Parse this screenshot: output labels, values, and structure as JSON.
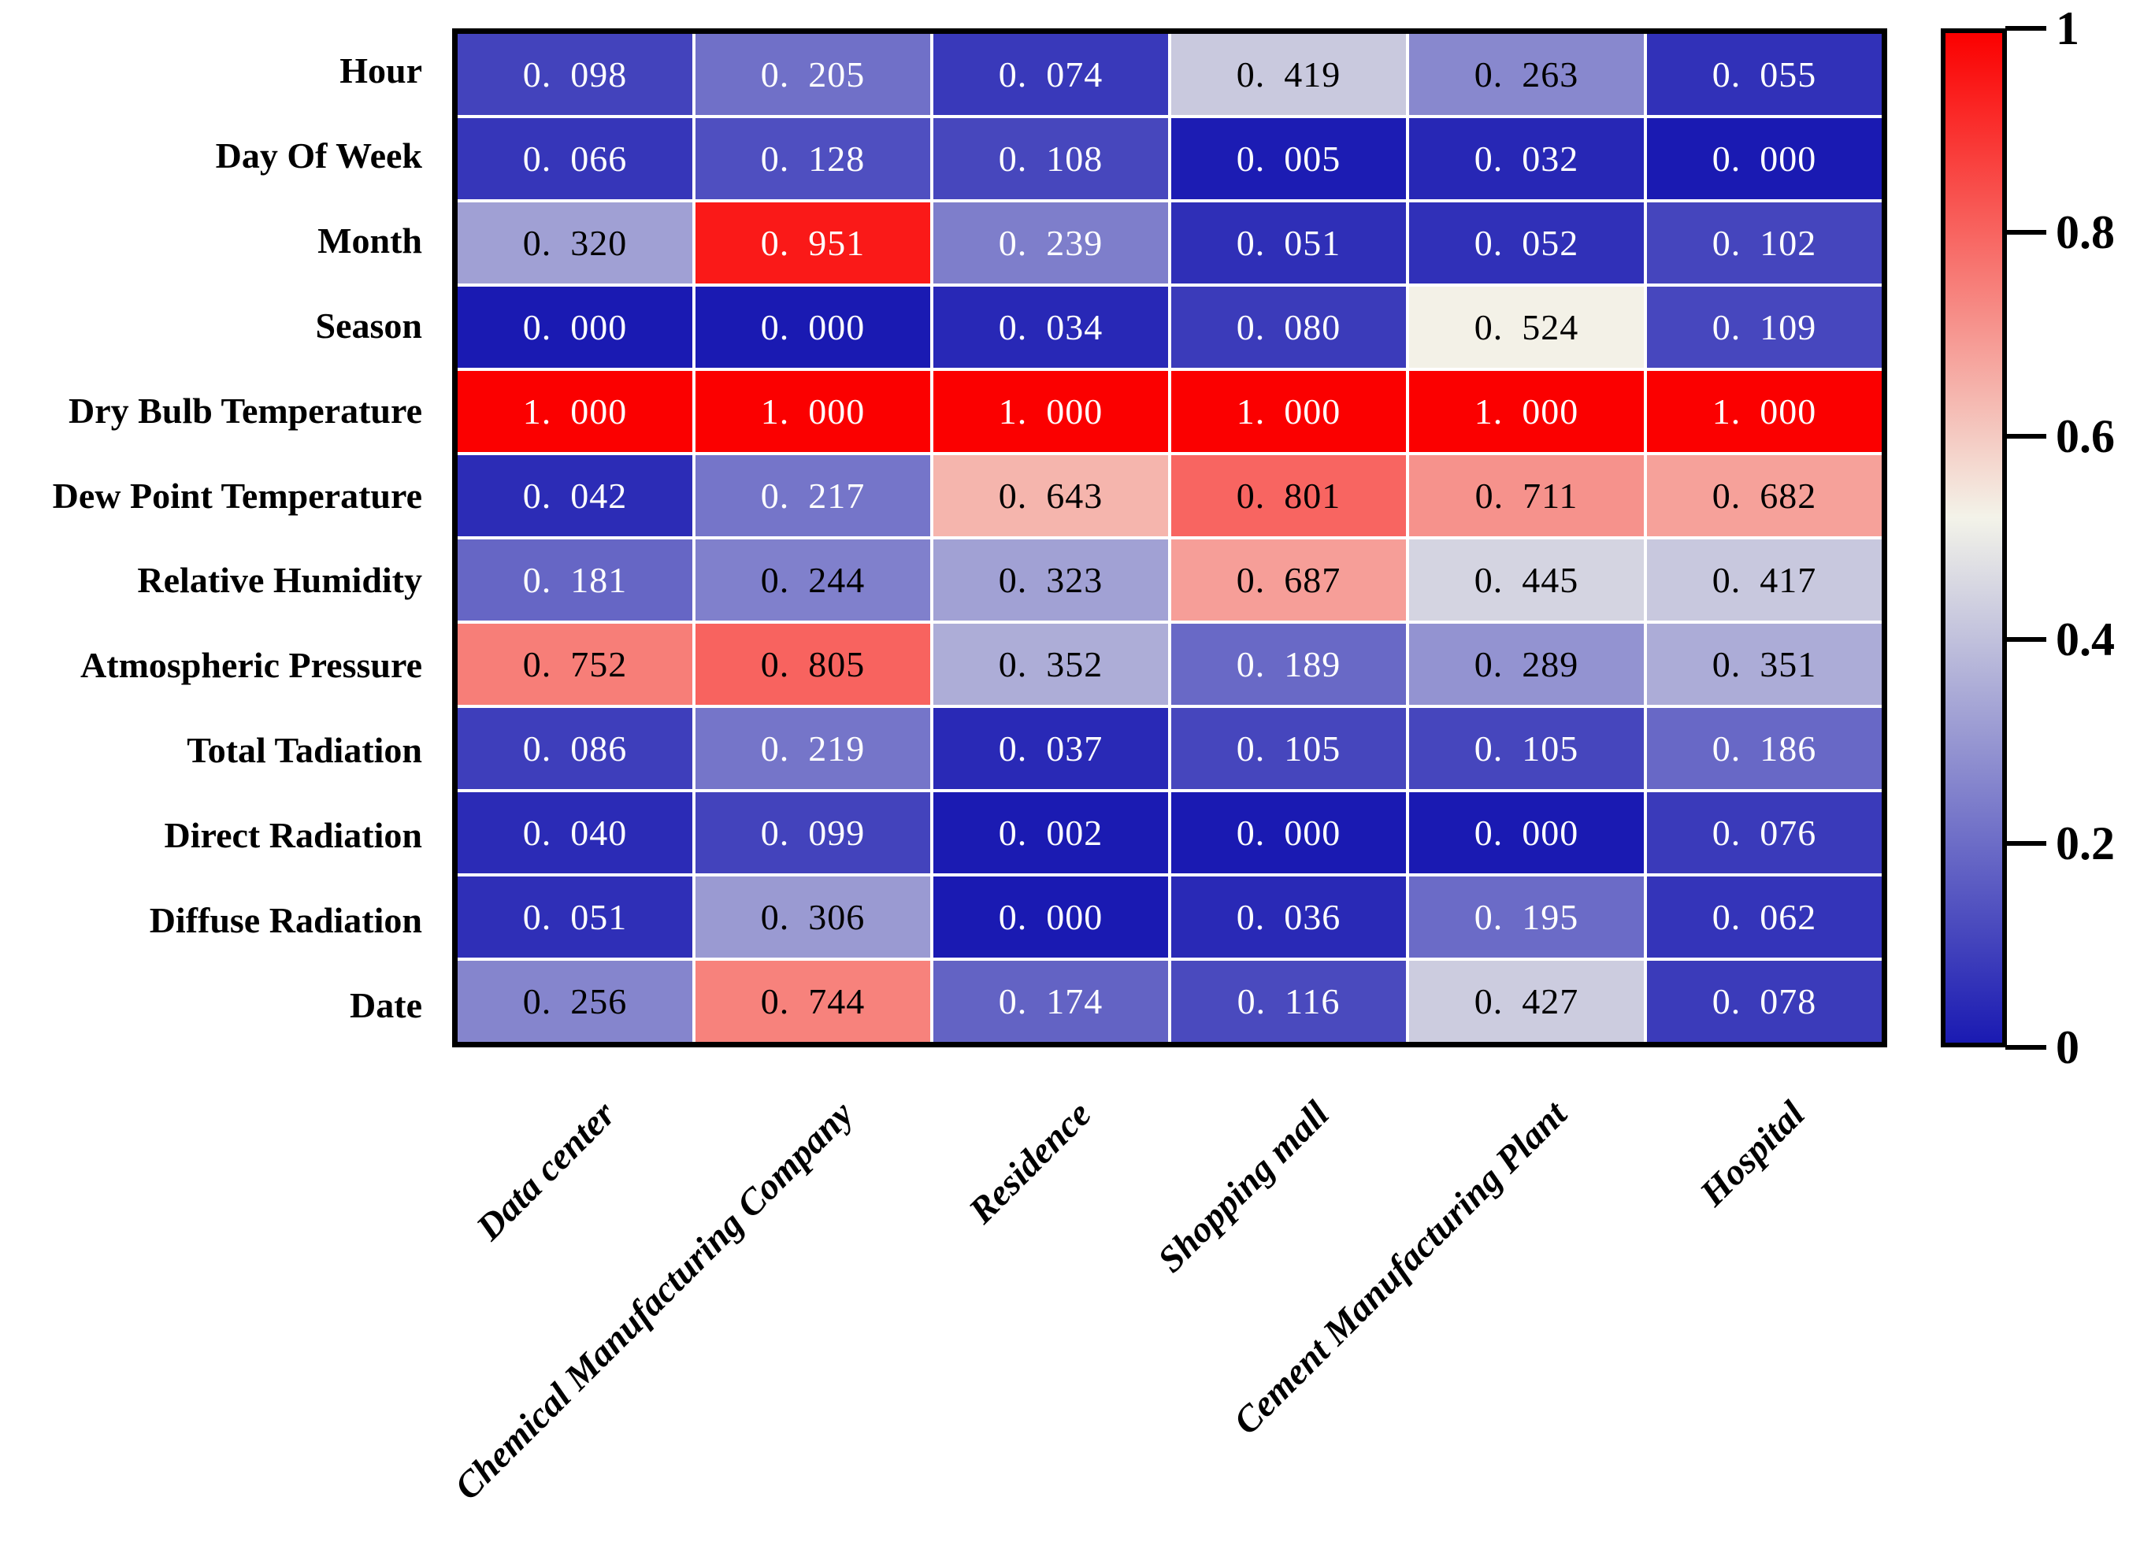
{
  "chart_data": {
    "type": "heatmap",
    "title": "",
    "xlabel": "",
    "ylabel": "",
    "rows": [
      "Hour",
      "Day Of Week",
      "Month",
      "Season",
      "Dry Bulb Temperature",
      "Dew Point Temperature",
      "Relative Humidity",
      "Atmospheric Pressure",
      "Total Tadiation",
      "Direct Radiation",
      "Diffuse Radiation",
      "Date"
    ],
    "columns": [
      "Data center",
      "Chemical Manufacturing Company",
      "Residence",
      "Shopping mall",
      "Cement Manufacturing Plant",
      "Hospital"
    ],
    "values": [
      [
        0.098,
        0.205,
        0.074,
        0.419,
        0.263,
        0.055
      ],
      [
        0.066,
        0.128,
        0.108,
        0.005,
        0.032,
        0.0
      ],
      [
        0.32,
        0.951,
        0.239,
        0.051,
        0.052,
        0.102
      ],
      [
        0.0,
        0.0,
        0.034,
        0.08,
        0.524,
        0.109
      ],
      [
        1.0,
        1.0,
        1.0,
        1.0,
        1.0,
        1.0
      ],
      [
        0.042,
        0.217,
        0.643,
        0.801,
        0.711,
        0.682
      ],
      [
        0.181,
        0.244,
        0.323,
        0.687,
        0.445,
        0.417
      ],
      [
        0.752,
        0.805,
        0.352,
        0.189,
        0.289,
        0.351
      ],
      [
        0.086,
        0.219,
        0.037,
        0.105,
        0.105,
        0.186
      ],
      [
        0.04,
        0.099,
        0.002,
        0.0,
        0.0,
        0.076
      ],
      [
        0.051,
        0.306,
        0.0,
        0.036,
        0.195,
        0.062
      ],
      [
        0.256,
        0.744,
        0.174,
        0.116,
        0.427,
        0.078
      ]
    ],
    "value_range": [
      0,
      1
    ],
    "value_decimals": 3,
    "decimal_separator_display": ". ",
    "grid": true,
    "legend_position": "right-colorbar",
    "colorbar": {
      "tick_labels": [
        "1",
        "0.8",
        "0.6",
        "0.4",
        "0.2",
        "0"
      ],
      "tick_values": [
        1,
        0.8,
        0.6,
        0.4,
        0.2,
        0
      ]
    },
    "colormap": {
      "low": "#1a1ab2",
      "mid": "#f3f3e9",
      "high": "#fb0000",
      "mid_point": 0.52
    },
    "cell_text_rule": {
      "black_min": 0.24,
      "black_max": 0.87,
      "black_color": "#000000",
      "white_color": "#ffffff"
    }
  }
}
